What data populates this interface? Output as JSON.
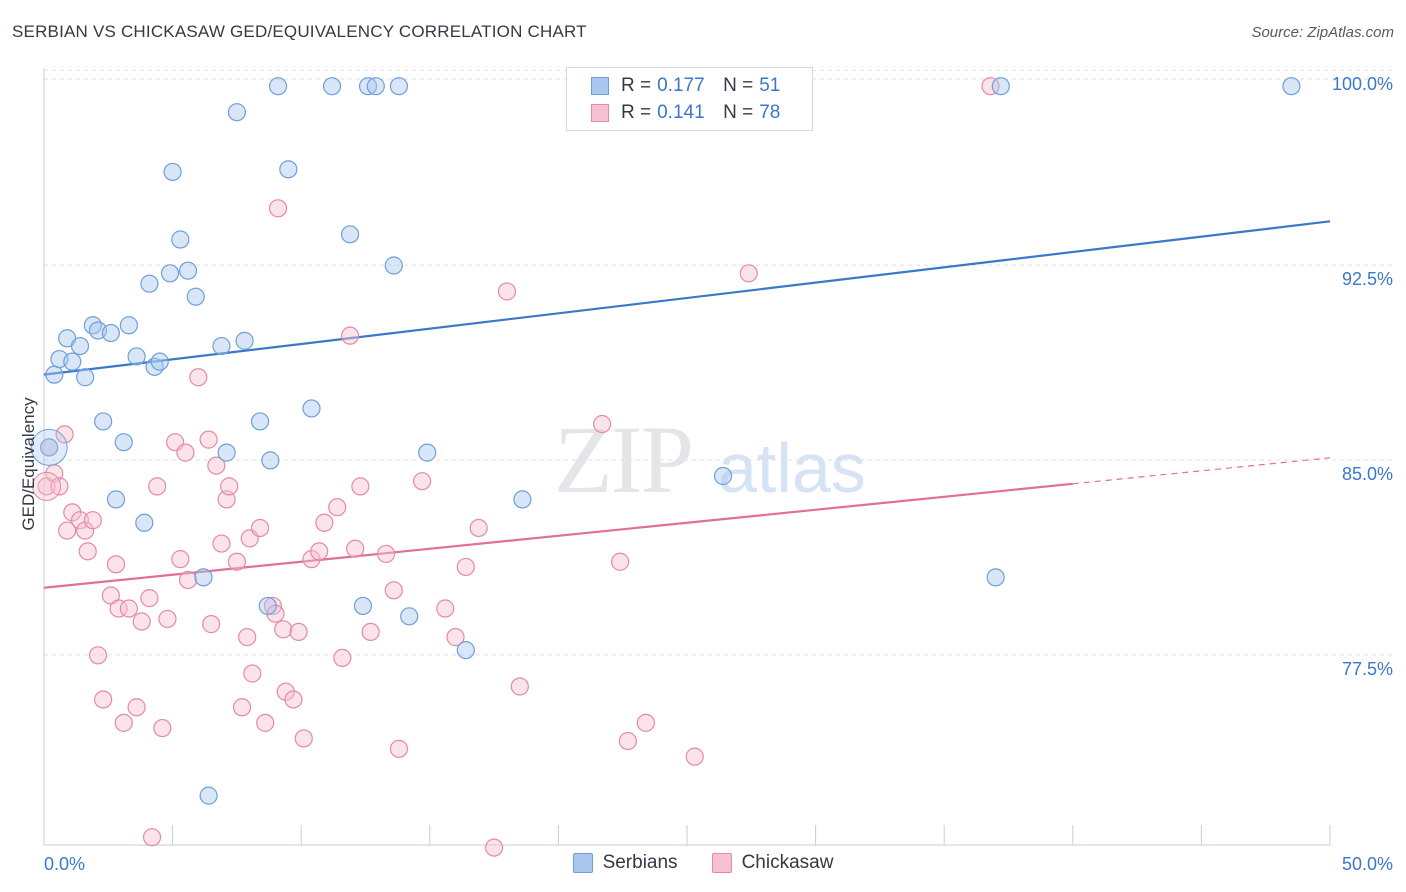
{
  "header": {
    "title": "SERBIAN VS CHICKASAW GED/EQUIVALENCY CORRELATION CHART",
    "source": "Source: ZipAtlas.com"
  },
  "legend": {
    "rows": [
      {
        "r_label": "R =",
        "r_value": "0.177",
        "n_label": "N =",
        "n_value": "51",
        "color": "#a9c7ee",
        "stroke": "#6f9fd8"
      },
      {
        "r_label": "R =",
        "r_value": "0.141",
        "n_label": "N =",
        "n_value": "78",
        "color": "#f7c0d0",
        "stroke": "#e58aa6"
      }
    ]
  },
  "bottom_legend": {
    "items": [
      {
        "label": "Serbians",
        "color": "#a9c7ee",
        "stroke": "#6f9fd8"
      },
      {
        "label": "Chickasaw",
        "color": "#f7c0d0",
        "stroke": "#e58aa6"
      }
    ]
  },
  "watermark": {
    "zip": "ZIP",
    "atlas": "atlas"
  },
  "chart_data": {
    "type": "scatter",
    "title": "SERBIAN VS CHICKASAW GED/EQUIVALENCY CORRELATION CHART",
    "xlabel": "",
    "ylabel": "GED/Equivalency",
    "xlim": [
      0,
      50
    ],
    "ylim": [
      70.8,
      100.7
    ],
    "x_tick_labels": [
      {
        "value": 0,
        "label": "0.0%"
      },
      {
        "value": 50,
        "label": "50.0%"
      }
    ],
    "y_tick_labels": [
      {
        "value": 100,
        "label": "100.0%"
      },
      {
        "value": 92.5,
        "label": "92.5%"
      },
      {
        "value": 85,
        "label": "85.0%"
      },
      {
        "value": 77.5,
        "label": "77.5%"
      }
    ],
    "x_minor_ticks": [
      0,
      5,
      10,
      15,
      20,
      25,
      30,
      35,
      40,
      45,
      50
    ],
    "grid": true,
    "legend_position": "top-center",
    "colors": {
      "serbians": "#6f9fd8",
      "serbians_fill": "#a9c7ee",
      "serbians_line": "#3a78c9",
      "chickasaw": "#e58aa6",
      "chickasaw_fill": "#f7c0d0",
      "chickasaw_line": "#e0709a"
    },
    "series": [
      {
        "name": "Serbians",
        "r": 0.177,
        "n": 51,
        "trend": {
          "x0": 0,
          "y0": 88.9,
          "x1": 50,
          "y1": 94.8
        },
        "points": [
          [
            0.2,
            86.1
          ],
          [
            0.4,
            88.9
          ],
          [
            0.6,
            89.5
          ],
          [
            0.9,
            90.3
          ],
          [
            1.1,
            89.4
          ],
          [
            1.4,
            90.0
          ],
          [
            1.6,
            88.8
          ],
          [
            1.9,
            90.8
          ],
          [
            2.1,
            90.6
          ],
          [
            2.3,
            87.1
          ],
          [
            2.6,
            90.5
          ],
          [
            2.8,
            84.1
          ],
          [
            3.1,
            86.3
          ],
          [
            3.3,
            90.8
          ],
          [
            3.6,
            89.6
          ],
          [
            3.9,
            83.2
          ],
          [
            4.1,
            92.4
          ],
          [
            4.3,
            89.2
          ],
          [
            4.5,
            89.4
          ],
          [
            4.9,
            92.8
          ],
          [
            5.0,
            96.7
          ],
          [
            5.3,
            94.1
          ],
          [
            5.6,
            92.9
          ],
          [
            5.9,
            91.9
          ],
          [
            6.2,
            81.1
          ],
          [
            6.4,
            72.7
          ],
          [
            6.9,
            90.0
          ],
          [
            7.1,
            85.9
          ],
          [
            7.5,
            99.0
          ],
          [
            7.8,
            90.2
          ],
          [
            8.4,
            87.1
          ],
          [
            8.7,
            80.0
          ],
          [
            8.8,
            85.6
          ],
          [
            9.1,
            100.0
          ],
          [
            9.5,
            96.8
          ],
          [
            10.4,
            87.6
          ],
          [
            11.2,
            100.0
          ],
          [
            11.9,
            94.3
          ],
          [
            12.4,
            80.0
          ],
          [
            12.6,
            100.0
          ],
          [
            12.9,
            100.0
          ],
          [
            13.6,
            93.1
          ],
          [
            13.8,
            100.0
          ],
          [
            14.2,
            79.6
          ],
          [
            14.9,
            85.9
          ],
          [
            16.4,
            78.3
          ],
          [
            18.6,
            84.1
          ],
          [
            26.4,
            85.0
          ],
          [
            37.0,
            81.1
          ],
          [
            37.2,
            100.0
          ],
          [
            48.5,
            100.0
          ]
        ]
      },
      {
        "name": "Chickasaw",
        "r": 0.141,
        "n": 78,
        "trend": {
          "x0": 0,
          "y0": 80.7,
          "x1": 40,
          "y1": 84.7,
          "dash_to_x": 50,
          "dash_to_y": 85.7
        },
        "points": [
          [
            0.1,
            84.6
          ],
          [
            0.2,
            86.1
          ],
          [
            0.4,
            85.1
          ],
          [
            0.6,
            84.6
          ],
          [
            0.8,
            86.6
          ],
          [
            0.9,
            82.9
          ],
          [
            1.1,
            83.6
          ],
          [
            1.4,
            83.3
          ],
          [
            1.6,
            82.9
          ],
          [
            1.7,
            82.1
          ],
          [
            1.9,
            83.3
          ],
          [
            2.1,
            78.1
          ],
          [
            2.3,
            76.4
          ],
          [
            2.6,
            80.4
          ],
          [
            2.8,
            81.6
          ],
          [
            2.9,
            79.9
          ],
          [
            3.1,
            75.5
          ],
          [
            3.3,
            79.9
          ],
          [
            3.6,
            76.1
          ],
          [
            3.8,
            79.4
          ],
          [
            4.1,
            80.3
          ],
          [
            4.2,
            71.1
          ],
          [
            4.4,
            84.6
          ],
          [
            4.6,
            75.3
          ],
          [
            4.8,
            79.5
          ],
          [
            5.1,
            86.3
          ],
          [
            5.3,
            81.8
          ],
          [
            5.5,
            85.9
          ],
          [
            5.6,
            81.0
          ],
          [
            6.0,
            88.8
          ],
          [
            6.4,
            86.4
          ],
          [
            6.5,
            79.3
          ],
          [
            6.7,
            85.4
          ],
          [
            6.9,
            82.4
          ],
          [
            7.1,
            84.1
          ],
          [
            7.2,
            84.6
          ],
          [
            7.5,
            81.7
          ],
          [
            7.7,
            76.1
          ],
          [
            7.9,
            78.8
          ],
          [
            8.0,
            82.6
          ],
          [
            8.1,
            77.4
          ],
          [
            8.4,
            83.0
          ],
          [
            8.6,
            75.5
          ],
          [
            8.9,
            80.0
          ],
          [
            9.0,
            79.7
          ],
          [
            9.1,
            95.3
          ],
          [
            9.3,
            79.1
          ],
          [
            9.4,
            76.7
          ],
          [
            9.7,
            76.4
          ],
          [
            9.9,
            79.0
          ],
          [
            10.1,
            74.9
          ],
          [
            10.4,
            81.8
          ],
          [
            10.7,
            82.1
          ],
          [
            10.9,
            83.2
          ],
          [
            11.4,
            83.8
          ],
          [
            11.6,
            78.0
          ],
          [
            11.9,
            90.4
          ],
          [
            12.1,
            82.2
          ],
          [
            12.3,
            84.6
          ],
          [
            12.7,
            79.0
          ],
          [
            13.3,
            82.0
          ],
          [
            13.6,
            80.6
          ],
          [
            13.8,
            74.5
          ],
          [
            14.7,
            84.8
          ],
          [
            15.6,
            79.9
          ],
          [
            16.0,
            78.8
          ],
          [
            16.4,
            81.5
          ],
          [
            16.9,
            83.0
          ],
          [
            17.5,
            70.7
          ],
          [
            18.0,
            92.1
          ],
          [
            18.5,
            76.9
          ],
          [
            21.7,
            87.0
          ],
          [
            22.4,
            81.7
          ],
          [
            22.7,
            74.8
          ],
          [
            23.4,
            75.5
          ],
          [
            25.3,
            74.2
          ],
          [
            27.4,
            92.8
          ],
          [
            36.8,
            100.0
          ]
        ]
      }
    ]
  }
}
